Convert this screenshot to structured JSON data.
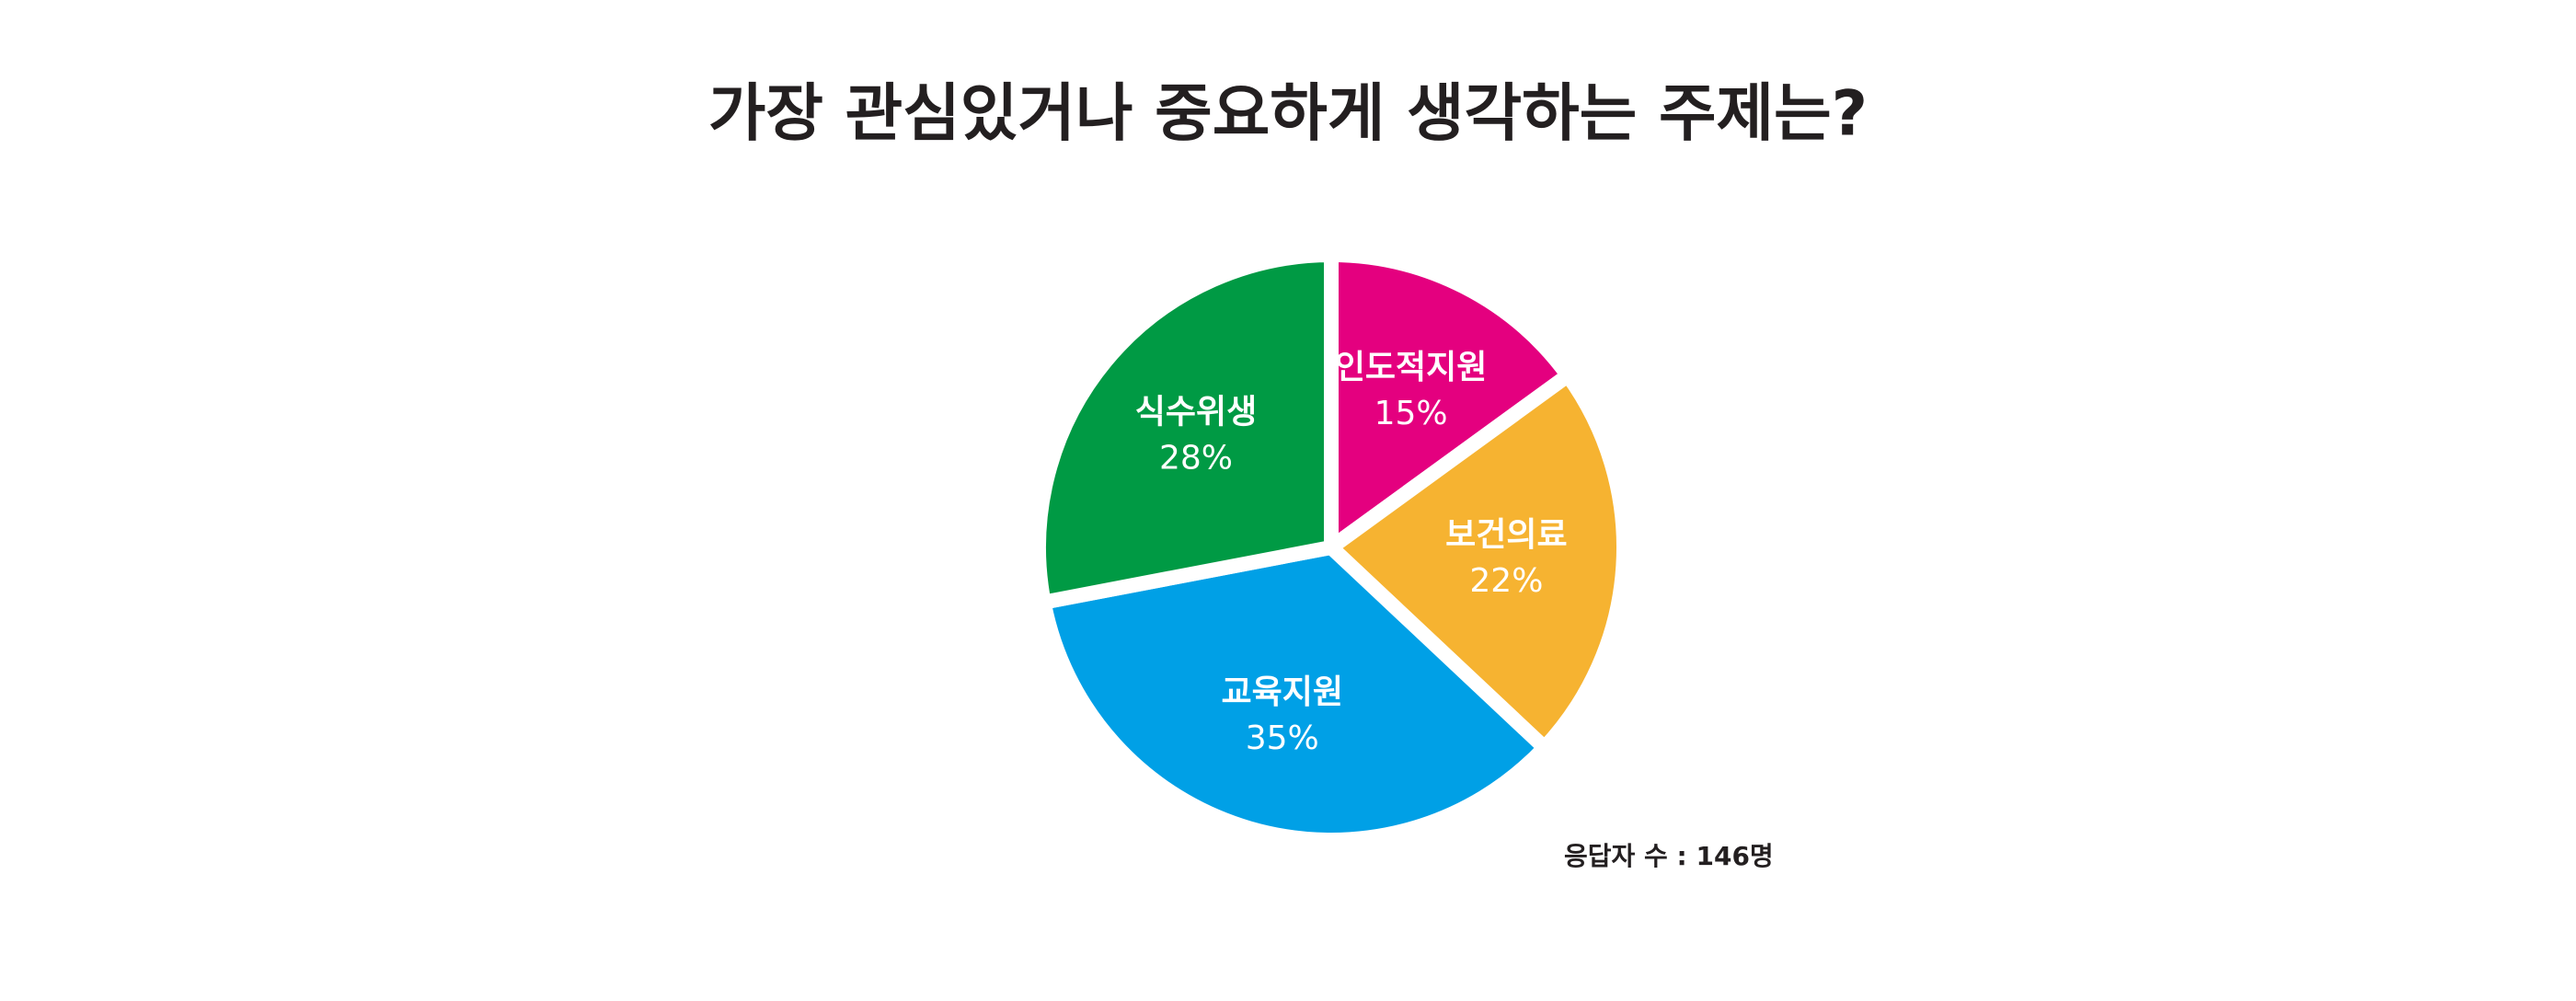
{
  "chart_data": {
    "type": "pie",
    "title": "가장 관심있거나 중요하게 생각하는 주제는?",
    "categories": [
      "인도적지원",
      "보건의료",
      "교육지원",
      "식수위생"
    ],
    "values": [
      15,
      22,
      35,
      28
    ],
    "value_labels": [
      "15%",
      "22%",
      "35%",
      "28%"
    ],
    "colors": [
      "#e4007f",
      "#f6b331",
      "#00a0e6",
      "#009a44"
    ],
    "note": "응답자 수 : 146명"
  }
}
